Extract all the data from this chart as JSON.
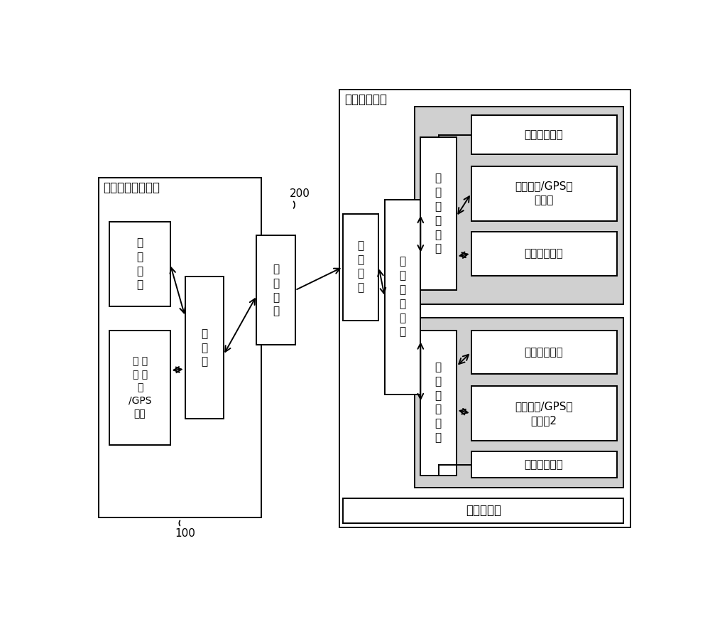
{
  "bg_color": "#ffffff",
  "lc": "#000000",
  "lw": 1.4,
  "fig_w": 10.0,
  "fig_h": 8.68,
  "title_right": "通信定位设备",
  "title_left": "通信定位天线装置",
  "label_100": "100",
  "label_200": "200",
  "font_size_title": 12,
  "font_size_box": 10,
  "font_size_label": 11
}
